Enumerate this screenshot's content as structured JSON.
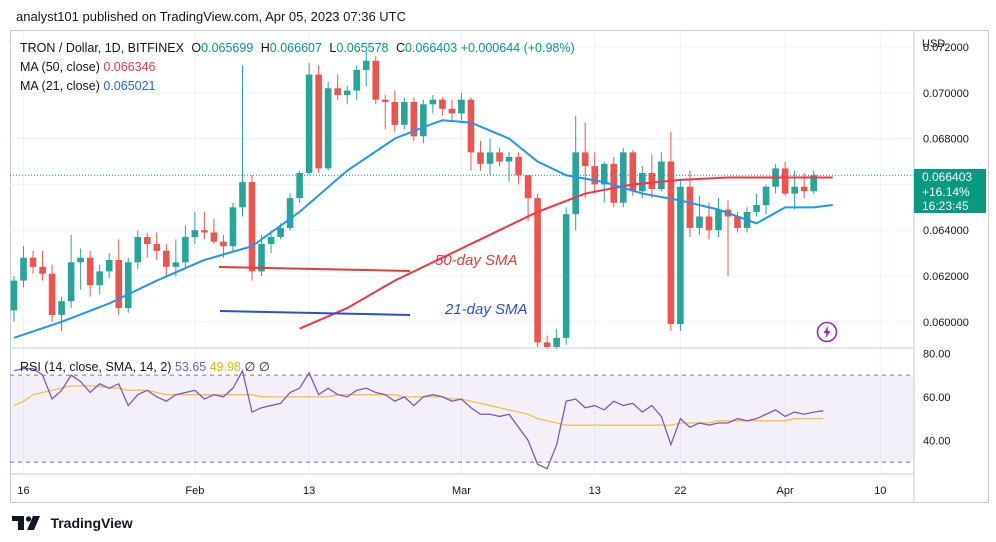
{
  "header": {
    "text": "analyst101 published on TradingView.com, Apr 05, 2023 07:36 UTC"
  },
  "legend": {
    "symbol": "TRON / Dollar, 1D, BITFINEX",
    "ohlc": [
      {
        "k": "O",
        "v": "0.065699"
      },
      {
        "k": "H",
        "v": "0.066607"
      },
      {
        "k": "L",
        "v": "0.065578"
      },
      {
        "k": "C",
        "v": "0.066403"
      }
    ],
    "change": "+0.000644 (+0.98%)",
    "ma50_label": "MA (50, close)",
    "ma50_value": "0.066346",
    "ma21_label": "MA (21, close)",
    "ma21_value": "0.065021"
  },
  "rsi_legend": {
    "label": "RSI (14, close, SMA, 14, 2)",
    "value": "53.65",
    "ma_value": "49.98",
    "extra1": "∅",
    "extra2": "∅"
  },
  "price_axis": {
    "currency": "USD",
    "ticks": [
      "0.072000",
      "0.070000",
      "0.068000",
      "0.066000",
      "0.064000",
      "0.062000",
      "0.060000"
    ],
    "rsi_ticks": [
      "80.00",
      "60.00",
      "40.00"
    ]
  },
  "last_price": {
    "price": "0.066403",
    "change_pct": "+16.14%",
    "countdown": "16:23:45"
  },
  "time_axis": {
    "labels": [
      "16",
      "Feb",
      "13",
      "Mar",
      "13",
      "22",
      "Apr",
      "10"
    ]
  },
  "annotations": {
    "sma50": "50-day SMA",
    "sma21": "21-day SMA"
  },
  "footer": {
    "brand": "TradingView"
  },
  "colors": {
    "up": "#26a69a",
    "down": "#ef5350",
    "ma50": "#f23645",
    "ma21": "#2196f3",
    "rsi": "#7e57c2",
    "rsi_ma": "#f5c040",
    "price_tag": "#089981"
  },
  "chart_data": {
    "type": "candlestick",
    "series": [
      {
        "name": "TRON / Dollar, 1D, BITFINEX",
        "ohlc": [
          [
            0.0605,
            0.062,
            0.06,
            0.0618
          ],
          [
            0.0618,
            0.0633,
            0.0615,
            0.0628
          ],
          [
            0.0628,
            0.0631,
            0.0621,
            0.0624
          ],
          [
            0.0624,
            0.0631,
            0.0618,
            0.0621
          ],
          [
            0.0621,
            0.0625,
            0.06,
            0.0603
          ],
          [
            0.0603,
            0.0611,
            0.0596,
            0.0609
          ],
          [
            0.0609,
            0.0638,
            0.0606,
            0.0626
          ],
          [
            0.0626,
            0.0632,
            0.0614,
            0.0628
          ],
          [
            0.0628,
            0.0631,
            0.0611,
            0.0616
          ],
          [
            0.0616,
            0.0625,
            0.0612,
            0.0622
          ],
          [
            0.0622,
            0.063,
            0.0619,
            0.0627
          ],
          [
            0.0627,
            0.0636,
            0.0603,
            0.0606
          ],
          [
            0.0606,
            0.0628,
            0.0604,
            0.0626
          ],
          [
            0.0626,
            0.064,
            0.0623,
            0.0637
          ],
          [
            0.0637,
            0.0639,
            0.0628,
            0.0634
          ],
          [
            0.0634,
            0.0639,
            0.0627,
            0.0631
          ],
          [
            0.0631,
            0.0634,
            0.062,
            0.0624
          ],
          [
            0.0624,
            0.0636,
            0.062,
            0.0626
          ],
          [
            0.0626,
            0.0642,
            0.0623,
            0.0637
          ],
          [
            0.0637,
            0.0648,
            0.0634,
            0.064
          ],
          [
            0.064,
            0.0648,
            0.0636,
            0.0639
          ],
          [
            0.0639,
            0.0645,
            0.0634,
            0.0635
          ],
          [
            0.0635,
            0.0638,
            0.0628,
            0.0633
          ],
          [
            0.0633,
            0.0652,
            0.0631,
            0.065
          ],
          [
            0.065,
            0.0712,
            0.0646,
            0.0661
          ],
          [
            0.0661,
            0.0664,
            0.0618,
            0.0622
          ],
          [
            0.0622,
            0.0638,
            0.062,
            0.0634
          ],
          [
            0.0634,
            0.064,
            0.063,
            0.0637
          ],
          [
            0.0637,
            0.0643,
            0.0636,
            0.0641
          ],
          [
            0.0641,
            0.0656,
            0.064,
            0.0654
          ],
          [
            0.0654,
            0.0666,
            0.0652,
            0.0665
          ],
          [
            0.0665,
            0.0713,
            0.0664,
            0.0708
          ],
          [
            0.0708,
            0.0712,
            0.0665,
            0.0667
          ],
          [
            0.0667,
            0.0705,
            0.0666,
            0.0702
          ],
          [
            0.0702,
            0.0708,
            0.0697,
            0.0699
          ],
          [
            0.0699,
            0.0703,
            0.0695,
            0.0701
          ],
          [
            0.0701,
            0.0712,
            0.0697,
            0.071
          ],
          [
            0.071,
            0.0718,
            0.0703,
            0.0714
          ],
          [
            0.0714,
            0.0716,
            0.0695,
            0.0697
          ],
          [
            0.0697,
            0.0699,
            0.0684,
            0.0696
          ],
          [
            0.0696,
            0.0701,
            0.0683,
            0.0686
          ],
          [
            0.0686,
            0.0698,
            0.0684,
            0.0696
          ],
          [
            0.0696,
            0.0698,
            0.0679,
            0.0681
          ],
          [
            0.0681,
            0.0697,
            0.0678,
            0.0695
          ],
          [
            0.0695,
            0.0699,
            0.0691,
            0.0697
          ],
          [
            0.0697,
            0.0698,
            0.069,
            0.0693
          ],
          [
            0.0693,
            0.0697,
            0.0688,
            0.0691
          ],
          [
            0.0691,
            0.07,
            0.0688,
            0.0697
          ],
          [
            0.0697,
            0.0698,
            0.0666,
            0.0674
          ],
          [
            0.0674,
            0.0679,
            0.0666,
            0.0669
          ],
          [
            0.0669,
            0.068,
            0.0664,
            0.0674
          ],
          [
            0.0674,
            0.0676,
            0.0668,
            0.067
          ],
          [
            0.067,
            0.0674,
            0.0661,
            0.0672
          ],
          [
            0.0672,
            0.0674,
            0.066,
            0.0664
          ],
          [
            0.0664,
            0.0664,
            0.0644,
            0.0654
          ],
          [
            0.0654,
            0.0656,
            0.0589,
            0.0591
          ],
          [
            0.0591,
            0.0594,
            0.0588,
            0.0589
          ],
          [
            0.0589,
            0.0597,
            0.0588,
            0.0593
          ],
          [
            0.0593,
            0.065,
            0.059,
            0.0647
          ],
          [
            0.0647,
            0.069,
            0.064,
            0.0674
          ],
          [
            0.0674,
            0.0687,
            0.0654,
            0.0668
          ],
          [
            0.0668,
            0.0674,
            0.0656,
            0.066
          ],
          [
            0.066,
            0.067,
            0.0652,
            0.0669
          ],
          [
            0.0669,
            0.0672,
            0.065,
            0.0652
          ],
          [
            0.0652,
            0.0676,
            0.065,
            0.0674
          ],
          [
            0.0674,
            0.0675,
            0.0655,
            0.0657
          ],
          [
            0.0657,
            0.0668,
            0.0654,
            0.0665
          ],
          [
            0.0665,
            0.0673,
            0.0654,
            0.0658
          ],
          [
            0.0658,
            0.0674,
            0.0657,
            0.067
          ],
          [
            0.067,
            0.0683,
            0.0596,
            0.0599
          ],
          [
            0.0599,
            0.0662,
            0.0596,
            0.0659
          ],
          [
            0.0659,
            0.0666,
            0.0637,
            0.0641
          ],
          [
            0.0641,
            0.0655,
            0.0638,
            0.0646
          ],
          [
            0.0646,
            0.0652,
            0.0636,
            0.064
          ],
          [
            0.064,
            0.0654,
            0.0637,
            0.0649
          ],
          [
            0.0649,
            0.0653,
            0.062,
            0.0646
          ],
          [
            0.0646,
            0.0648,
            0.0639,
            0.0641
          ],
          [
            0.0641,
            0.065,
            0.0639,
            0.0648
          ],
          [
            0.0648,
            0.0656,
            0.0646,
            0.0651
          ],
          [
            0.0651,
            0.066,
            0.0647,
            0.0659
          ],
          [
            0.0659,
            0.0669,
            0.0656,
            0.0667
          ],
          [
            0.0667,
            0.067,
            0.0655,
            0.0656
          ],
          [
            0.0656,
            0.0666,
            0.0649,
            0.0659
          ],
          [
            0.0659,
            0.0665,
            0.0654,
            0.0657
          ],
          [
            0.0657,
            0.0666,
            0.0656,
            0.0664
          ]
        ]
      }
    ],
    "ma50": [
      [
        30,
        0.0597
      ],
      [
        35,
        0.0606
      ],
      [
        40,
        0.0618
      ],
      [
        45,
        0.0628
      ],
      [
        50,
        0.0638
      ],
      [
        55,
        0.0648
      ],
      [
        60,
        0.0656
      ],
      [
        65,
        0.066
      ],
      [
        70,
        0.0662
      ],
      [
        75,
        0.0663
      ],
      [
        80,
        0.0663
      ],
      [
        86,
        0.0663
      ]
    ],
    "ma21": [
      [
        0,
        0.0593
      ],
      [
        5,
        0.06
      ],
      [
        10,
        0.0608
      ],
      [
        15,
        0.0618
      ],
      [
        20,
        0.0627
      ],
      [
        25,
        0.0633
      ],
      [
        30,
        0.0648
      ],
      [
        35,
        0.0666
      ],
      [
        40,
        0.068
      ],
      [
        43,
        0.0685
      ],
      [
        45,
        0.0688
      ],
      [
        48,
        0.0687
      ],
      [
        52,
        0.068
      ],
      [
        55,
        0.067
      ],
      [
        58,
        0.0664
      ],
      [
        62,
        0.0661
      ],
      [
        66,
        0.0656
      ],
      [
        70,
        0.0653
      ],
      [
        74,
        0.0649
      ],
      [
        78,
        0.0643
      ],
      [
        81,
        0.065
      ],
      [
        84,
        0.065
      ],
      [
        86,
        0.0651
      ]
    ],
    "rsi": [
      72,
      73,
      73,
      70,
      59,
      63,
      70,
      67,
      62,
      66,
      64,
      66,
      56,
      61,
      63,
      60,
      58,
      61,
      62,
      63,
      59,
      61,
      60,
      64,
      72,
      53,
      55,
      56,
      57,
      62,
      64,
      71,
      61,
      64,
      61,
      60,
      63,
      64,
      62,
      61,
      58,
      60,
      56,
      60,
      61,
      60,
      58,
      59,
      55,
      52,
      52,
      51,
      52,
      46,
      40,
      29,
      27,
      38,
      58,
      59,
      55,
      56,
      54,
      58,
      56,
      57,
      53,
      56,
      51,
      38,
      50,
      46,
      48,
      47,
      48,
      48,
      50,
      49,
      50,
      52,
      54,
      51,
      53,
      52,
      53,
      53.65
    ],
    "rsi_ma": [
      56,
      58,
      61,
      62,
      63,
      64,
      65,
      65,
      65,
      65,
      64,
      64,
      63,
      63,
      63,
      62,
      61,
      61,
      61,
      61,
      61,
      61,
      61,
      61,
      61,
      61,
      60,
      60,
      60,
      60,
      60,
      60,
      60,
      60,
      61,
      61,
      61,
      61,
      61,
      61,
      61,
      60,
      60,
      60,
      60,
      60,
      59,
      59,
      58,
      57,
      56,
      55,
      54,
      53,
      52,
      50,
      49,
      48,
      47,
      47,
      47,
      47,
      47,
      47,
      47,
      47,
      47,
      47,
      47,
      47,
      48,
      48,
      48,
      48,
      49,
      49,
      49,
      49,
      49,
      49,
      49,
      49,
      50,
      50,
      50,
      49.98
    ],
    "ylim": [
      0.0589,
      0.0727
    ],
    "rsi_ylim": [
      25,
      82
    ],
    "rsi_levels": [
      70,
      30
    ],
    "yscale": "linear"
  }
}
